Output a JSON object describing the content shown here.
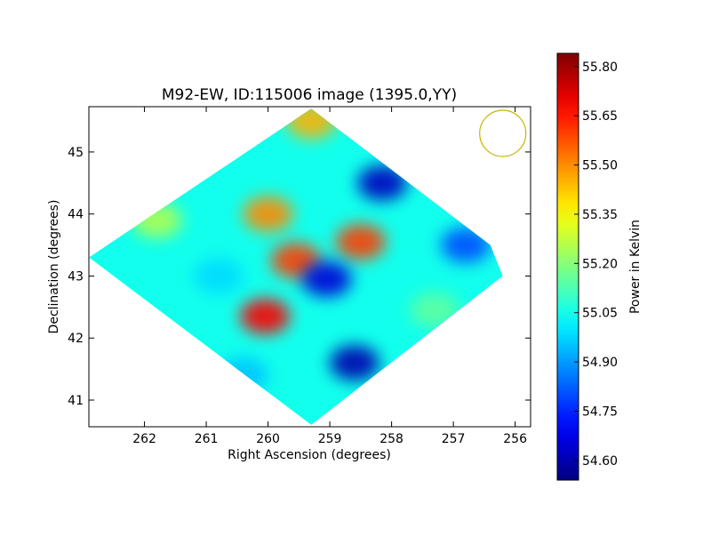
{
  "chart_data": {
    "type": "heatmap",
    "title": "M92-EW, ID:115006 image (1395.0,YY)",
    "xlabel": "Right Ascension (degrees)",
    "ylabel": "Declination (degrees)",
    "xlim": [
      262.9,
      255.75
    ],
    "ylim": [
      40.57,
      45.73
    ],
    "x_ticks": [
      262,
      261,
      260,
      259,
      258,
      257,
      256
    ],
    "y_ticks": [
      41,
      42,
      43,
      44,
      45
    ],
    "colorbar": {
      "label": "Power in Kelvin",
      "range": [
        54.54,
        55.84
      ],
      "ticks": [
        "55.80",
        "55.65",
        "55.50",
        "55.35",
        "55.20",
        "55.05",
        "54.90",
        "54.75",
        "54.60"
      ],
      "colormap": "jet"
    },
    "map_boundary": [
      [
        259.3,
        45.7
      ],
      [
        256.4,
        43.5
      ],
      [
        256.2,
        43.0
      ],
      [
        259.3,
        40.6
      ],
      [
        262.9,
        43.3
      ]
    ],
    "base_value": 55.05,
    "features": [
      {
        "ra": 260.05,
        "dec": 42.35,
        "value": 55.68
      },
      {
        "ra": 260.0,
        "dec": 44.0,
        "value": 55.5
      },
      {
        "ra": 259.55,
        "dec": 43.25,
        "value": 55.6
      },
      {
        "ra": 258.5,
        "dec": 43.55,
        "value": 55.6
      },
      {
        "ra": 259.3,
        "dec": 45.5,
        "value": 55.45
      },
      {
        "ra": 261.8,
        "dec": 43.9,
        "value": 55.25
      },
      {
        "ra": 257.3,
        "dec": 42.45,
        "value": 55.15
      },
      {
        "ra": 258.15,
        "dec": 44.5,
        "value": 54.62
      },
      {
        "ra": 258.6,
        "dec": 41.6,
        "value": 54.6
      },
      {
        "ra": 259.05,
        "dec": 42.95,
        "value": 54.65
      },
      {
        "ra": 256.8,
        "dec": 43.5,
        "value": 54.8
      },
      {
        "ra": 260.4,
        "dec": 41.4,
        "value": 54.95
      },
      {
        "ra": 260.8,
        "dec": 43.0,
        "value": 54.98
      }
    ],
    "beam": {
      "ra": 256.2,
      "dec": 45.3,
      "color": "#c8b400"
    }
  }
}
